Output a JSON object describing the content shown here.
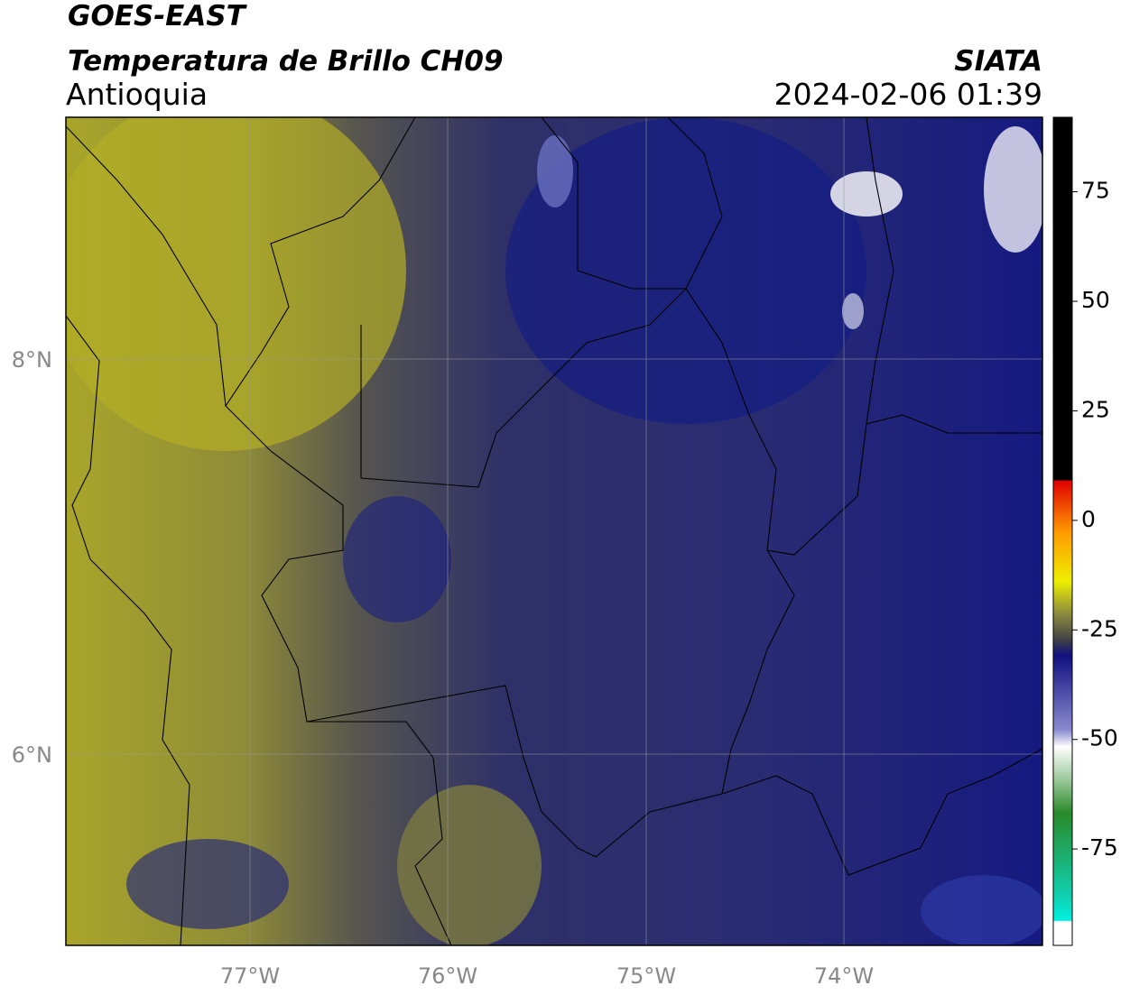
{
  "header": {
    "title": "GOES-EAST",
    "subtitle": "Temperatura de Brillo CH09",
    "region": "Antioquia",
    "source": "SIATA",
    "datetime": "2024-02-06 01:39"
  },
  "map": {
    "lat_labels": [
      "8°N",
      "6°N"
    ],
    "lon_labels": [
      "77°W",
      "76°W",
      "75°W",
      "74°W"
    ]
  },
  "colorbar": {
    "range": [
      -97,
      92
    ],
    "ticks": [
      75,
      50,
      25,
      0,
      -25,
      -50,
      -75
    ]
  }
}
